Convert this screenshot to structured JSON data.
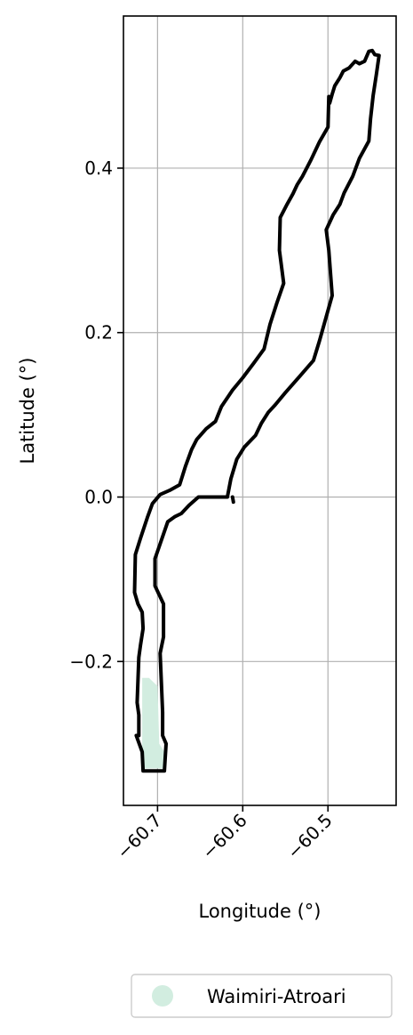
{
  "chart_data": {
    "type": "map",
    "xlabel": "Longitude (°)",
    "ylabel": "Latitude (°)",
    "xlim": [
      -60.74,
      -60.42
    ],
    "ylim": [
      -0.375,
      0.585
    ],
    "xticks": [
      {
        "value": -60.7,
        "label": "−60.7"
      },
      {
        "value": -60.6,
        "label": "−60.6"
      },
      {
        "value": -60.5,
        "label": "−60.5"
      }
    ],
    "yticks": [
      {
        "value": -0.2,
        "label": "−0.2"
      },
      {
        "value": 0.0,
        "label": "0.0"
      },
      {
        "value": 0.2,
        "label": "0.2"
      },
      {
        "value": 0.4,
        "label": "0.4"
      }
    ],
    "grid": true,
    "legend": {
      "position": "bottom-center",
      "entries": [
        {
          "label": "Waimiri-Atroari",
          "color": "#d2ede0"
        }
      ]
    },
    "series": [
      {
        "name": "Waimiri-Atroari",
        "kind": "filled-area",
        "color": "#d2ede0",
        "points": [
          [
            -60.718,
            -0.33
          ],
          [
            -60.718,
            -0.22
          ],
          [
            -60.71,
            -0.22
          ],
          [
            -60.7,
            -0.23
          ],
          [
            -60.698,
            -0.3
          ],
          [
            -60.692,
            -0.31
          ],
          [
            -60.692,
            -0.33
          ]
        ]
      },
      {
        "kind": "boundary-outline",
        "color": "#000000",
        "points": [
          [
            -60.717,
            -0.333
          ],
          [
            -60.692,
            -0.333
          ],
          [
            -60.69,
            -0.3
          ],
          [
            -60.694,
            -0.29
          ],
          [
            -60.694,
            -0.262
          ],
          [
            -60.697,
            -0.19
          ],
          [
            -60.693,
            -0.17
          ],
          [
            -60.693,
            -0.13
          ],
          [
            -60.703,
            -0.108
          ],
          [
            -60.703,
            -0.075
          ],
          [
            -60.698,
            -0.06
          ],
          [
            -60.688,
            -0.03
          ],
          [
            -60.68,
            -0.024
          ],
          [
            -60.672,
            -0.02
          ],
          [
            -60.663,
            -0.01
          ],
          [
            -60.652,
            0.0
          ],
          [
            -60.627,
            0.0
          ],
          [
            -60.618,
            0.0
          ],
          [
            -60.614,
            0.022
          ],
          [
            -60.607,
            0.046
          ],
          [
            -60.598,
            0.061
          ],
          [
            -60.585,
            0.075
          ],
          [
            -60.578,
            0.09
          ],
          [
            -60.57,
            0.103
          ],
          [
            -60.562,
            0.112
          ],
          [
            -60.55,
            0.127
          ],
          [
            -60.533,
            0.147
          ],
          [
            -60.517,
            0.166
          ],
          [
            -60.51,
            0.19
          ],
          [
            -60.495,
            0.245
          ],
          [
            -60.499,
            0.3
          ],
          [
            -60.502,
            0.325
          ],
          [
            -60.494,
            0.343
          ],
          [
            -60.486,
            0.356
          ],
          [
            -60.481,
            0.37
          ],
          [
            -60.471,
            0.39
          ],
          [
            -60.463,
            0.412
          ],
          [
            -60.452,
            0.433
          ],
          [
            -60.45,
            0.46
          ],
          [
            -60.447,
            0.488
          ],
          [
            -60.443,
            0.515
          ],
          [
            -60.44,
            0.537
          ],
          [
            -60.445,
            0.538
          ],
          [
            -60.448,
            0.543
          ],
          [
            -60.452,
            0.542
          ],
          [
            -60.457,
            0.53
          ],
          [
            -60.463,
            0.527
          ],
          [
            -60.468,
            0.53
          ],
          [
            -60.475,
            0.522
          ],
          [
            -60.482,
            0.518
          ],
          [
            -60.486,
            0.51
          ],
          [
            -60.492,
            0.5
          ],
          [
            -60.495,
            0.49
          ],
          [
            -60.498,
            0.479
          ],
          [
            -60.499,
            0.487
          ],
          [
            -60.5,
            0.45
          ],
          [
            -60.51,
            0.432
          ],
          [
            -60.52,
            0.41
          ],
          [
            -60.53,
            0.39
          ],
          [
            -60.536,
            0.38
          ],
          [
            -60.541,
            0.369
          ],
          [
            -60.548,
            0.356
          ],
          [
            -60.556,
            0.34
          ],
          [
            -60.557,
            0.3
          ],
          [
            -60.552,
            0.26
          ],
          [
            -60.56,
            0.236
          ],
          [
            -60.568,
            0.21
          ],
          [
            -60.575,
            0.18
          ],
          [
            -60.587,
            0.163
          ],
          [
            -60.6,
            0.145
          ],
          [
            -60.612,
            0.13
          ],
          [
            -60.625,
            0.11
          ],
          [
            -60.632,
            0.092
          ],
          [
            -60.643,
            0.083
          ],
          [
            -60.654,
            0.07
          ],
          [
            -60.66,
            0.058
          ],
          [
            -60.667,
            0.038
          ],
          [
            -60.674,
            0.015
          ],
          [
            -60.686,
            0.008
          ],
          [
            -60.697,
            0.003
          ],
          [
            -60.706,
            -0.008
          ],
          [
            -60.712,
            -0.025
          ],
          [
            -60.72,
            -0.05
          ],
          [
            -60.726,
            -0.07
          ],
          [
            -60.727,
            -0.116
          ],
          [
            -60.723,
            -0.13
          ],
          [
            -60.718,
            -0.14
          ],
          [
            -60.717,
            -0.16
          ],
          [
            -60.72,
            -0.18
          ],
          [
            -60.722,
            -0.195
          ],
          [
            -60.724,
            -0.25
          ],
          [
            -60.722,
            -0.265
          ],
          [
            -60.722,
            -0.29
          ],
          [
            -60.725,
            -0.29
          ],
          [
            -60.718,
            -0.31
          ],
          [
            -60.717,
            -0.333
          ]
        ]
      },
      {
        "kind": "boundary-segment",
        "color": "#000000",
        "points": [
          [
            -60.612,
            0.0
          ],
          [
            -60.611,
            -0.006
          ]
        ]
      }
    ]
  }
}
